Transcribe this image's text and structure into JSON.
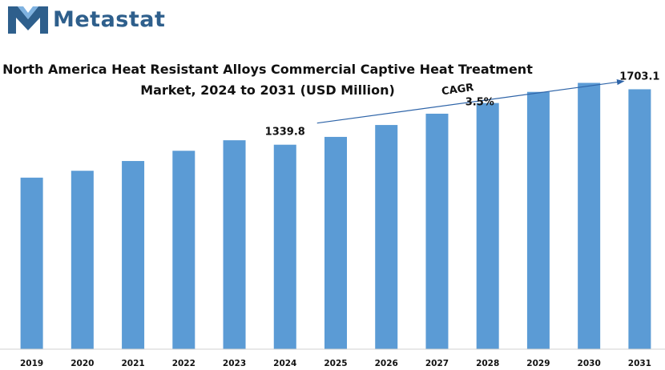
{
  "brand": {
    "name": "Metastat",
    "color": "#2e5f8c"
  },
  "chart_data": {
    "type": "bar",
    "title_line1": "North America Heat Resistant Alloys Commercial Captive Heat Treatment",
    "title_line2": "Market, 2024 to 2031 (USD Million)",
    "categories": [
      "2019",
      "2020",
      "2021",
      "2022",
      "2023",
      "2024",
      "2025",
      "2026",
      "2027",
      "2028",
      "2029",
      "2030",
      "2031"
    ],
    "values": [
      1124,
      1169,
      1233,
      1300,
      1369,
      1339.8,
      1391,
      1469,
      1543,
      1613,
      1686,
      1745,
      1703.1
    ],
    "data_labels": [
      {
        "index": 5,
        "text": "1339.8"
      },
      {
        "index": 12,
        "text": "1703.1"
      }
    ],
    "annotation": {
      "label": "CAGR",
      "value": "3.5%",
      "from_index": 5,
      "to_index": 12
    },
    "bar_color": "#5b9bd5",
    "ylim": [
      0,
      1800
    ],
    "grid": false,
    "legend": "none"
  }
}
